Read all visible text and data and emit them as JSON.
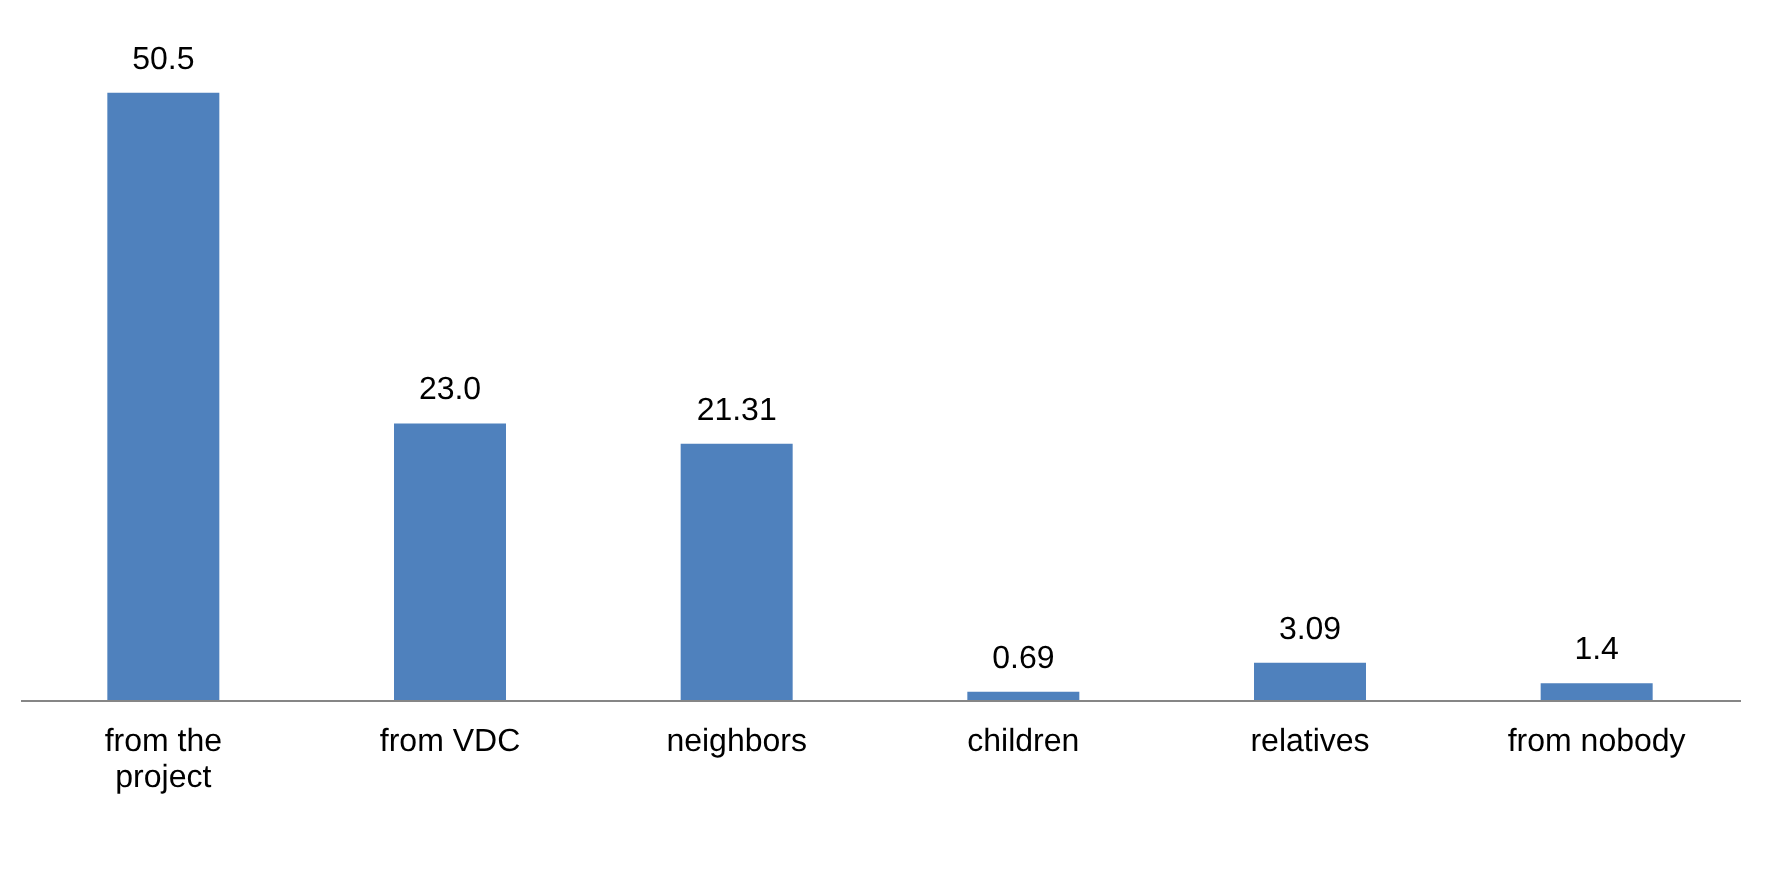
{
  "chart_data": {
    "type": "bar",
    "categories": [
      "from the project",
      "from VDC",
      "neighbors",
      "children",
      "relatives",
      "from nobody"
    ],
    "values": [
      50.5,
      23.0,
      21.31,
      0.69,
      3.09,
      1.4
    ],
    "value_labels": [
      "50.5",
      "23.0",
      "21.31",
      "0.69",
      "3.09",
      "1.4"
    ],
    "color": "#4f81bd"
  }
}
